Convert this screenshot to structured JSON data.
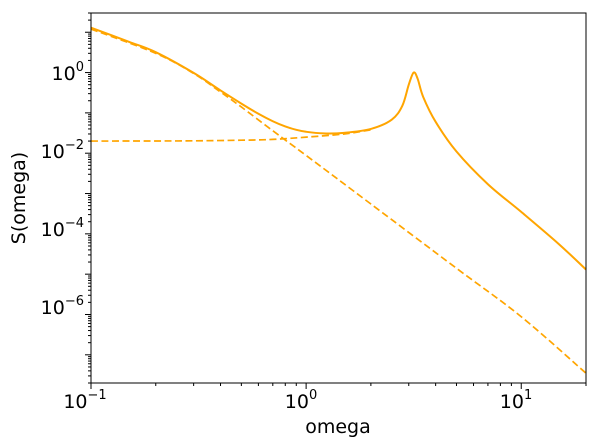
{
  "chart_data": {
    "type": "line",
    "title": "",
    "xlabel": "omega",
    "ylabel": "S(omega)",
    "xscale": "log",
    "yscale": "log",
    "xlim": [
      0.1,
      20
    ],
    "ylim": [
      2e-08,
      30
    ],
    "grid": false,
    "legend": "none",
    "color": "#FFA500",
    "x_ticks": [
      {
        "base": "10",
        "exp": "−1",
        "value": 0.1
      },
      {
        "base": "10",
        "exp": "0",
        "value": 1
      },
      {
        "base": "10",
        "exp": "1",
        "value": 10
      }
    ],
    "y_ticks": [
      {
        "base": "10",
        "exp": "0",
        "value": 1
      },
      {
        "base": "10",
        "exp": "−2",
        "value": 0.01
      },
      {
        "base": "10",
        "exp": "−4",
        "value": 0.0001
      },
      {
        "base": "10",
        "exp": "−6",
        "value": 1e-06
      }
    ],
    "series": [
      {
        "style": "solid",
        "points": [
          [
            0.1,
            13.0
          ],
          [
            0.15,
            5.8
          ],
          [
            0.2,
            3.2
          ],
          [
            0.3,
            0.98
          ],
          [
            0.4,
            0.36
          ],
          [
            0.5,
            0.17
          ],
          [
            0.6,
            0.095
          ],
          [
            0.7,
            0.062
          ],
          [
            0.8,
            0.046
          ],
          [
            0.9,
            0.038
          ],
          [
            1.0,
            0.034
          ],
          [
            1.2,
            0.031
          ],
          [
            1.5,
            0.032
          ],
          [
            2.0,
            0.04
          ],
          [
            2.5,
            0.068
          ],
          [
            2.8,
            0.15
          ],
          [
            3.0,
            0.5
          ],
          [
            3.16,
            1.0
          ],
          [
            3.3,
            0.7
          ],
          [
            3.5,
            0.25
          ],
          [
            4.0,
            0.06
          ],
          [
            5.0,
            0.011
          ],
          [
            7.0,
            0.0017
          ],
          [
            10.0,
            0.00035
          ],
          [
            15.0,
            5.5e-05
          ],
          [
            20.0,
            1.3e-05
          ]
        ]
      },
      {
        "style": "dashed",
        "points": [
          [
            0.1,
            12.0
          ],
          [
            0.2,
            3.0
          ],
          [
            0.3,
            0.95
          ],
          [
            0.4,
            0.33
          ],
          [
            0.5,
            0.14
          ],
          [
            0.7,
            0.036
          ],
          [
            1.0,
            0.0088
          ],
          [
            2.0,
            0.00055
          ],
          [
            5.0,
            1.4e-05
          ],
          [
            10.0,
            8.8e-07
          ],
          [
            20.0,
            3.5e-08
          ]
        ]
      },
      {
        "style": "dashed",
        "points": [
          [
            0.1,
            0.02
          ],
          [
            0.2,
            0.0201
          ],
          [
            0.3,
            0.0203
          ],
          [
            0.5,
            0.021
          ],
          [
            0.7,
            0.022
          ],
          [
            1.0,
            0.025
          ],
          [
            1.5,
            0.03
          ],
          [
            2.0,
            0.038
          ]
        ]
      }
    ]
  }
}
